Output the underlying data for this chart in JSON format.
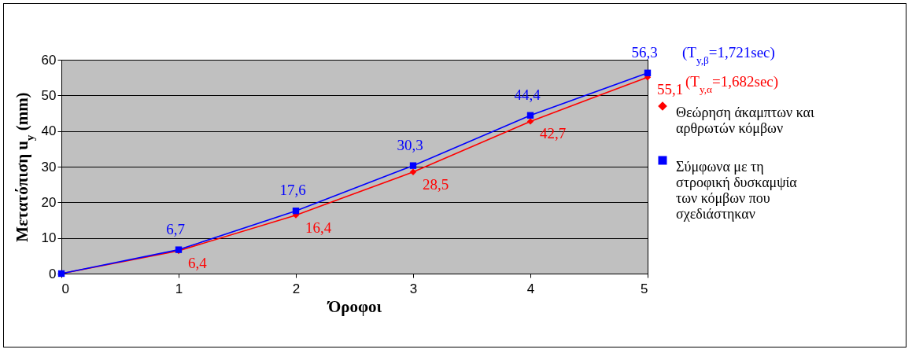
{
  "chart_data": {
    "type": "line",
    "xlabel": "Όροφοι",
    "ylabel": "Μετατόπιση u$_{y}$   (mm)",
    "x": [
      0,
      1,
      2,
      3,
      4,
      5
    ],
    "series": [
      {
        "name": "Θεώρηση άκαμπτων και αρθρωτών κόμβων",
        "color": "#ff0000",
        "marker": "diamond",
        "values": [
          0,
          6.4,
          16.4,
          28.5,
          42.7,
          55.1
        ],
        "value_labels": [
          null,
          "6,4",
          "16,4",
          "28,5",
          "42,7",
          "55,1"
        ]
      },
      {
        "name": "Σύμφωνα με τη στροφική δυσκαμψία των κόμβων που σχεδιάστηκαν",
        "color": "#0000ff",
        "marker": "square",
        "values": [
          0,
          6.7,
          17.6,
          30.3,
          44.4,
          56.3
        ],
        "value_labels": [
          null,
          "6,7",
          "17,6",
          "30,3",
          "44,4",
          "56,3"
        ]
      }
    ],
    "annotations": [
      {
        "text": "(T$_{y,α}$=1,682sec)",
        "x": 5,
        "y": 55.1
      },
      {
        "text": "(T$_{y,β}$=1,721sec)",
        "x": 5,
        "y": 56.3
      }
    ],
    "xlim": [
      0,
      5
    ],
    "xticks": [
      0,
      1,
      2,
      3,
      4,
      5
    ],
    "ylim": [
      0,
      60
    ],
    "yticks": [
      0,
      10,
      20,
      30,
      40,
      50,
      60
    ],
    "grid": "y",
    "legend": "right",
    "line_style": "solid"
  }
}
